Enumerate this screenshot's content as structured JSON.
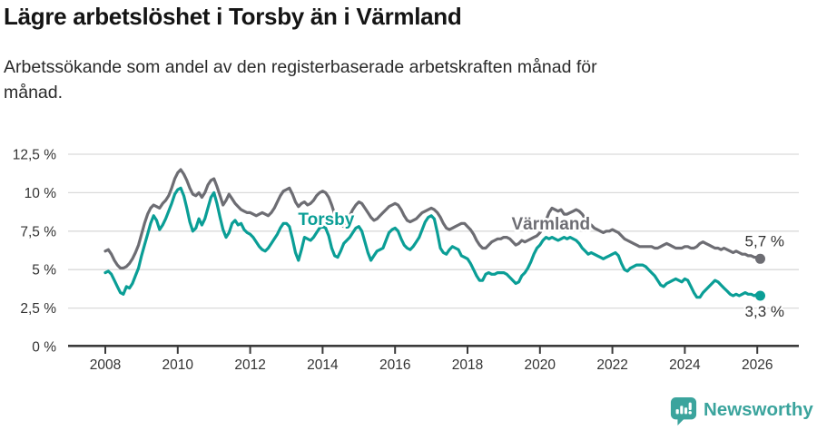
{
  "header": {
    "title": "Lägre arbetslöshet i Torsby än i Värmland",
    "subtitle": "Arbetssökande som andel av den registerbaserade arbetskraften månad för månad."
  },
  "footer": {
    "brand": "Newsworthy"
  },
  "colors": {
    "torsby": "#0a9e96",
    "varmland": "#6d6d73",
    "grid": "#dadada",
    "axis": "#3a3a3a",
    "tick_text": "#333333",
    "end_label_text": "#303030",
    "brand_teal": "#3ba49d"
  },
  "chart_data": {
    "type": "line",
    "title": "Lägre arbetslöshet i Torsby än i Värmland",
    "xlabel": "",
    "ylabel": "",
    "unit": "%",
    "frequency": "monthly",
    "x_start": {
      "year": 2008,
      "month": 1
    },
    "x_end": {
      "year": 2026,
      "month": 2
    },
    "ylim": [
      0,
      12.5
    ],
    "grid": true,
    "legend_position": "inline",
    "yticks": [
      {
        "value": 0,
        "label": "0 %"
      },
      {
        "value": 2.5,
        "label": "2,5 %"
      },
      {
        "value": 5,
        "label": "5 %"
      },
      {
        "value": 7.5,
        "label": "7,5 %"
      },
      {
        "value": 10,
        "label": "10 %"
      },
      {
        "value": 12.5,
        "label": "12,5 %"
      }
    ],
    "xticks": [
      {
        "value": 2008,
        "label": "2008"
      },
      {
        "value": 2010,
        "label": "2010"
      },
      {
        "value": 2012,
        "label": "2012"
      },
      {
        "value": 2014,
        "label": "2014"
      },
      {
        "value": 2016,
        "label": "2016"
      },
      {
        "value": 2018,
        "label": "2018"
      },
      {
        "value": 2020,
        "label": "2020"
      },
      {
        "value": 2022,
        "label": "2022"
      },
      {
        "value": 2024,
        "label": "2024"
      },
      {
        "value": 2026,
        "label": "2026"
      }
    ],
    "series": [
      {
        "name": "Torsby",
        "key": "torsby",
        "color": "#0a9e96",
        "end_label": "3,3 %",
        "end_label_position": "below",
        "inline_label": {
          "x": 2014.1,
          "y": 8.25
        },
        "values": [
          4.8,
          4.9,
          4.7,
          4.3,
          3.9,
          3.5,
          3.4,
          3.9,
          3.8,
          4.1,
          4.6,
          5.1,
          5.9,
          6.6,
          7.3,
          8.0,
          8.5,
          8.2,
          7.6,
          7.9,
          8.3,
          8.8,
          9.3,
          9.9,
          10.2,
          10.3,
          9.8,
          9.0,
          8.1,
          7.5,
          7.7,
          8.3,
          7.9,
          8.3,
          9.0,
          9.7,
          10.0,
          9.3,
          8.4,
          7.6,
          7.1,
          7.4,
          8.0,
          8.2,
          7.9,
          8.0,
          7.6,
          7.4,
          7.3,
          7.1,
          6.8,
          6.5,
          6.3,
          6.2,
          6.4,
          6.7,
          7.0,
          7.3,
          7.7,
          8.0,
          8.0,
          7.8,
          7.0,
          6.1,
          5.6,
          6.3,
          7.1,
          7.0,
          6.9,
          7.1,
          7.4,
          7.7,
          7.8,
          7.7,
          7.2,
          6.4,
          5.9,
          5.8,
          6.2,
          6.7,
          6.9,
          7.1,
          7.4,
          7.7,
          7.8,
          7.5,
          6.8,
          6.1,
          5.6,
          5.9,
          6.2,
          6.3,
          6.4,
          6.9,
          7.4,
          7.6,
          7.7,
          7.5,
          7.0,
          6.6,
          6.4,
          6.3,
          6.5,
          6.8,
          7.1,
          7.6,
          8.1,
          8.4,
          8.5,
          8.3,
          7.4,
          6.4,
          6.1,
          6.0,
          6.3,
          6.5,
          6.4,
          6.3,
          5.9,
          5.8,
          5.7,
          5.4,
          5.0,
          4.6,
          4.3,
          4.3,
          4.7,
          4.8,
          4.7,
          4.7,
          4.8,
          4.8,
          4.8,
          4.7,
          4.5,
          4.3,
          4.1,
          4.2,
          4.6,
          4.8,
          5.1,
          5.5,
          6.0,
          6.4,
          6.6,
          6.9,
          7.1,
          7.0,
          7.1,
          7.0,
          6.9,
          7.0,
          7.1,
          7.0,
          7.1,
          7.0,
          6.9,
          6.7,
          6.4,
          6.2,
          6.0,
          6.1,
          6.0,
          5.9,
          5.8,
          5.7,
          5.8,
          5.9,
          6.0,
          6.1,
          5.9,
          5.4,
          5.0,
          4.9,
          5.1,
          5.2,
          5.3,
          5.3,
          5.3,
          5.2,
          5.0,
          4.8,
          4.6,
          4.3,
          4.0,
          3.9,
          4.1,
          4.2,
          4.3,
          4.4,
          4.3,
          4.2,
          4.4,
          4.3,
          3.9,
          3.5,
          3.2,
          3.2,
          3.5,
          3.7,
          3.9,
          4.1,
          4.3,
          4.2,
          4.0,
          3.8,
          3.6,
          3.4,
          3.3,
          3.4,
          3.3,
          3.4,
          3.5,
          3.4,
          3.4,
          3.3,
          3.4,
          3.3
        ]
      },
      {
        "name": "Värmland",
        "key": "varmland",
        "color": "#6d6d73",
        "end_label": "5,7 %",
        "end_label_position": "above",
        "inline_label": {
          "x": 2020.3,
          "y": 7.95
        },
        "values": [
          6.2,
          6.3,
          6.0,
          5.6,
          5.3,
          5.1,
          5.1,
          5.2,
          5.4,
          5.7,
          6.1,
          6.6,
          7.3,
          8.0,
          8.6,
          9.0,
          9.2,
          9.1,
          9.0,
          9.3,
          9.5,
          9.8,
          10.3,
          10.9,
          11.3,
          11.5,
          11.2,
          10.8,
          10.3,
          9.9,
          9.8,
          10.0,
          9.7,
          10.0,
          10.5,
          10.8,
          10.9,
          10.4,
          9.8,
          9.2,
          9.5,
          9.9,
          9.6,
          9.3,
          9.1,
          8.9,
          8.8,
          8.7,
          8.7,
          8.6,
          8.5,
          8.6,
          8.7,
          8.6,
          8.5,
          8.7,
          9.0,
          9.4,
          9.8,
          10.1,
          10.2,
          10.3,
          9.9,
          9.4,
          9.1,
          9.3,
          9.4,
          9.2,
          9.3,
          9.5,
          9.8,
          10.0,
          10.1,
          10.0,
          9.7,
          9.2,
          8.6,
          8.1,
          7.9,
          7.8,
          8.1,
          8.5,
          8.9,
          9.2,
          9.4,
          9.3,
          9.0,
          8.7,
          8.4,
          8.2,
          8.3,
          8.5,
          8.7,
          8.9,
          9.1,
          9.2,
          9.3,
          9.2,
          8.9,
          8.5,
          8.2,
          8.1,
          8.2,
          8.3,
          8.5,
          8.7,
          8.8,
          8.9,
          9.0,
          8.9,
          8.7,
          8.4,
          8.0,
          7.7,
          7.6,
          7.7,
          7.8,
          7.9,
          8.0,
          8.0,
          7.8,
          7.6,
          7.3,
          6.9,
          6.6,
          6.4,
          6.4,
          6.6,
          6.8,
          6.9,
          7.0,
          7.0,
          7.1,
          7.1,
          7.0,
          6.8,
          6.6,
          6.7,
          6.9,
          6.8,
          6.9,
          7.0,
          7.1,
          7.2,
          7.4,
          7.7,
          8.2,
          8.7,
          9.0,
          8.9,
          8.8,
          8.9,
          8.6,
          8.6,
          8.7,
          8.8,
          8.9,
          8.8,
          8.6,
          8.3,
          8.0,
          7.9,
          7.7,
          7.6,
          7.5,
          7.4,
          7.5,
          7.5,
          7.6,
          7.5,
          7.4,
          7.2,
          7.0,
          6.9,
          6.8,
          6.7,
          6.6,
          6.5,
          6.5,
          6.5,
          6.5,
          6.5,
          6.4,
          6.4,
          6.5,
          6.6,
          6.7,
          6.6,
          6.5,
          6.4,
          6.4,
          6.4,
          6.5,
          6.5,
          6.4,
          6.4,
          6.5,
          6.7,
          6.8,
          6.7,
          6.6,
          6.5,
          6.4,
          6.4,
          6.3,
          6.4,
          6.3,
          6.2,
          6.1,
          6.2,
          6.1,
          6.0,
          6.0,
          5.9,
          5.9,
          5.8,
          5.8,
          5.7
        ]
      }
    ]
  }
}
